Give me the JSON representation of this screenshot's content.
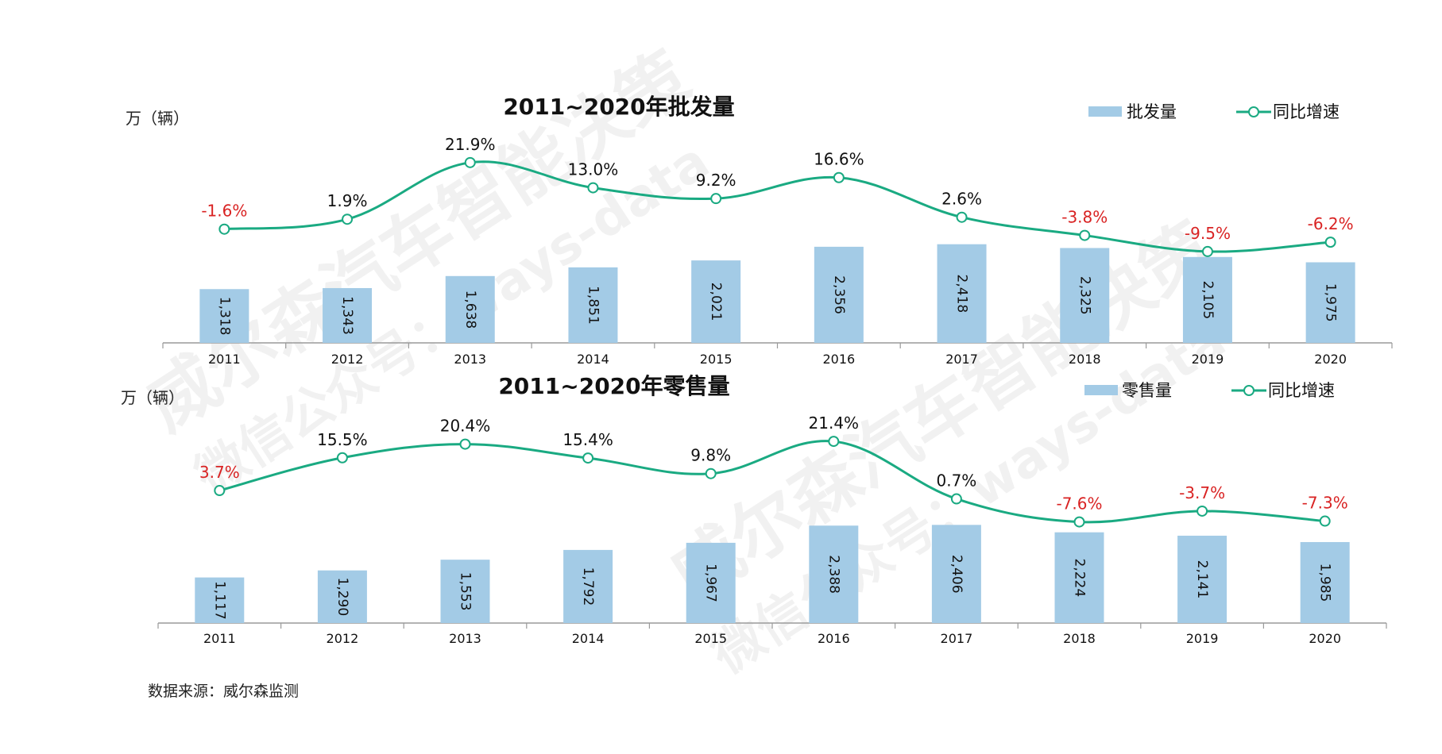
{
  "colors": {
    "bar": "#a3cbe6",
    "line": "#1aaa82",
    "positive": "#111111",
    "negative": "#d92323",
    "axis": "#9a9a9a"
  },
  "chart_data": [
    {
      "type": "bar",
      "title": "2011~2020年批发量",
      "ylabel": "万（辆）",
      "categories": [
        "2011",
        "2012",
        "2013",
        "2014",
        "2015",
        "2016",
        "2017",
        "2018",
        "2019",
        "2020"
      ],
      "series": [
        {
          "name": "批发量",
          "type": "bar",
          "values": [
            1318,
            1343,
            1638,
            1851,
            2021,
            2356,
            2418,
            2325,
            2105,
            1975
          ],
          "labels": [
            "1,318",
            "1,343",
            "1,638",
            "1,851",
            "2,021",
            "2,356",
            "2,418",
            "2,325",
            "2,105",
            "1,975"
          ]
        },
        {
          "name": "同比增速",
          "type": "line",
          "values": [
            -1.6,
            1.9,
            21.9,
            13.0,
            9.2,
            16.6,
            2.6,
            -3.8,
            -9.5,
            -6.2
          ],
          "labels": [
            "-1.6%",
            "1.9%",
            "21.9%",
            "13.0%",
            "9.2%",
            "16.6%",
            "2.6%",
            "-3.8%",
            "-9.5%",
            "-6.2%"
          ]
        }
      ]
    },
    {
      "type": "bar",
      "title": "2011~2020年零售量",
      "ylabel": "万（辆）",
      "categories": [
        "2011",
        "2012",
        "2013",
        "2014",
        "2015",
        "2016",
        "2017",
        "2018",
        "2019",
        "2020"
      ],
      "series": [
        {
          "name": "零售量",
          "type": "bar",
          "values": [
            1117,
            1290,
            1553,
            1792,
            1967,
            2388,
            2406,
            2224,
            2141,
            1985
          ],
          "labels": [
            "1,117",
            "1,290",
            "1,553",
            "1,792",
            "1,967",
            "2,388",
            "2,406",
            "2,224",
            "2,141",
            "1,985"
          ]
        },
        {
          "name": "同比增速",
          "type": "line",
          "values": [
            3.7,
            15.5,
            20.4,
            15.4,
            9.8,
            21.4,
            0.7,
            -7.6,
            -3.7,
            -7.3
          ],
          "labels": [
            "3.7%",
            "15.5%",
            "20.4%",
            "15.4%",
            "9.8%",
            "21.4%",
            "0.7%",
            "-7.6%",
            "-3.7%",
            "-7.3%"
          ]
        }
      ]
    }
  ],
  "source": "数据来源：威尔森监测",
  "watermark": {
    "line1": "威尔森汽车智能决策",
    "line2": "微信公众号：ways-data"
  }
}
